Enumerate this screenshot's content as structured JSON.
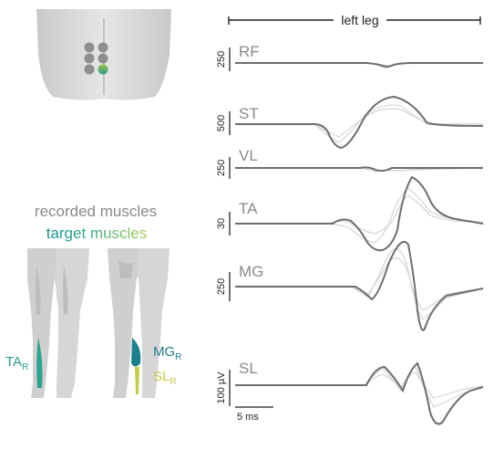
{
  "header": {
    "title": "left leg"
  },
  "legend": {
    "recorded": "recorded muscles",
    "target": "target muscles",
    "target_gradient": [
      "#1a8a92",
      "#2aa38f",
      "#7cc26e",
      "#c9d35a"
    ]
  },
  "implant": {
    "electrode_rows": 3,
    "electrode_cols": 2,
    "active_electrode": "bottom-right",
    "active_colors": [
      "#8cc04a",
      "#2a9d8f"
    ]
  },
  "muscle_labels": {
    "ta": {
      "main": "TA",
      "sub": "R",
      "color": "#2a9d8f"
    },
    "mg": {
      "main": "MG",
      "sub": "R",
      "color": "#1b7f8c"
    },
    "sl": {
      "main": "SL",
      "sub": "R",
      "color": "#c7c94a"
    }
  },
  "traces": [
    {
      "name": "RF",
      "scale": "250"
    },
    {
      "name": "ST",
      "scale": "500"
    },
    {
      "name": "VL",
      "scale": "250"
    },
    {
      "name": "TA",
      "scale": "30"
    },
    {
      "name": "MG",
      "scale": "250"
    },
    {
      "name": "SL",
      "scale": "100 µV"
    }
  ],
  "time_scale": "5 ms",
  "colors": {
    "trace_dark": "#6e6e6e",
    "trace_light": "#d2d2d2",
    "axis": "#222222",
    "body": "#d6d6d6",
    "body_dark": "#bdbdbd"
  }
}
